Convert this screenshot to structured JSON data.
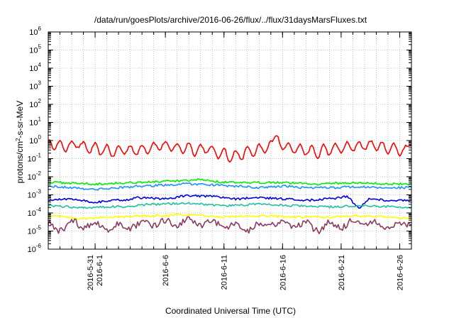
{
  "chart_data": {
    "type": "line",
    "title": "/data/run/goesPlots/archive/2016-06-26/flux/../flux/31daysMarsFluxes.txt",
    "xlabel": "Coordinated Universal Time (UTC)",
    "ylabel": "protons/cm2-s-sr-MeV",
    "y_scale": "log",
    "ylim": [
      1e-06,
      1000000.0
    ],
    "y_ticks": [
      {
        "base": "10",
        "exp": "6"
      },
      {
        "base": "10",
        "exp": "5"
      },
      {
        "base": "10",
        "exp": "4"
      },
      {
        "base": "10",
        "exp": "3"
      },
      {
        "base": "10",
        "exp": "2"
      },
      {
        "base": "10",
        "exp": "1"
      },
      {
        "base": "10",
        "exp": "0"
      },
      {
        "base": "10",
        "exp": "-1"
      },
      {
        "base": "10",
        "exp": "-2"
      },
      {
        "base": "10",
        "exp": "-3"
      },
      {
        "base": "10",
        "exp": "-4"
      },
      {
        "base": "10",
        "exp": "-5"
      },
      {
        "base": "10",
        "exp": "-6"
      }
    ],
    "x_range": [
      "2016-05-27T00:00",
      "2016-06-27T00:00"
    ],
    "x_ticks": [
      {
        "date": "2016-05-31",
        "lines": [
          "2016-5-31",
          "2016-6-1"
        ]
      },
      {
        "date": "2016-06-06",
        "lines": [
          "2016-6-6"
        ]
      },
      {
        "date": "2016-06-11",
        "lines": [
          "2016-6-11"
        ]
      },
      {
        "date": "2016-06-16",
        "lines": [
          "2016-6-16"
        ]
      },
      {
        "date": "2016-06-21",
        "lines": [
          "2016-6-21"
        ]
      },
      {
        "date": "2016-06-26",
        "lines": [
          "2016-6-26"
        ]
      }
    ],
    "grid": true,
    "series": [
      {
        "color": "#ff0000",
        "values": [
          {
            "x": "2016-05-27T00:00",
            "y": 1.2
          },
          {
            "x": "2016-05-27T12:00",
            "y": 0.35
          },
          {
            "x": "2016-05-28T00:00",
            "y": 0.9
          },
          {
            "x": "2016-05-28T12:00",
            "y": 0.25
          },
          {
            "x": "2016-05-29T00:00",
            "y": 1.0
          },
          {
            "x": "2016-05-29T12:00",
            "y": 0.4
          },
          {
            "x": "2016-05-30T00:00",
            "y": 0.8
          },
          {
            "x": "2016-05-30T12:00",
            "y": 0.2
          },
          {
            "x": "2016-05-31T00:00",
            "y": 0.7
          },
          {
            "x": "2016-05-31T12:00",
            "y": 0.15
          },
          {
            "x": "2016-06-01T00:00",
            "y": 0.6
          },
          {
            "x": "2016-06-01T12:00",
            "y": 0.12
          },
          {
            "x": "2016-06-02T00:00",
            "y": 0.5
          },
          {
            "x": "2016-06-02T12:00",
            "y": 0.18
          },
          {
            "x": "2016-06-03T00:00",
            "y": 0.55
          },
          {
            "x": "2016-06-03T12:00",
            "y": 0.15
          },
          {
            "x": "2016-06-04T00:00",
            "y": 0.6
          },
          {
            "x": "2016-06-04T12:00",
            "y": 0.2
          },
          {
            "x": "2016-06-05T00:00",
            "y": 0.8
          },
          {
            "x": "2016-06-05T12:00",
            "y": 0.3
          },
          {
            "x": "2016-06-06T00:00",
            "y": 0.9
          },
          {
            "x": "2016-06-06T12:00",
            "y": 0.25
          },
          {
            "x": "2016-06-07T00:00",
            "y": 0.7
          },
          {
            "x": "2016-06-07T12:00",
            "y": 0.2
          },
          {
            "x": "2016-06-08T00:00",
            "y": 0.8
          },
          {
            "x": "2016-06-08T12:00",
            "y": 0.15
          },
          {
            "x": "2016-06-09T00:00",
            "y": 0.6
          },
          {
            "x": "2016-06-09T12:00",
            "y": 0.2
          },
          {
            "x": "2016-06-10T00:00",
            "y": 0.5
          },
          {
            "x": "2016-06-10T12:00",
            "y": 0.1
          },
          {
            "x": "2016-06-11T00:00",
            "y": 0.4
          },
          {
            "x": "2016-06-11T12:00",
            "y": 0.06
          },
          {
            "x": "2016-06-12T00:00",
            "y": 0.3
          },
          {
            "x": "2016-06-12T12:00",
            "y": 0.08
          },
          {
            "x": "2016-06-13T00:00",
            "y": 0.5
          },
          {
            "x": "2016-06-13T12:00",
            "y": 0.12
          },
          {
            "x": "2016-06-14T00:00",
            "y": 0.6
          },
          {
            "x": "2016-06-14T12:00",
            "y": 0.2
          },
          {
            "x": "2016-06-15T00:00",
            "y": 0.9
          },
          {
            "x": "2016-06-15T12:00",
            "y": 2.0
          },
          {
            "x": "2016-06-16T00:00",
            "y": 0.3
          },
          {
            "x": "2016-06-16T12:00",
            "y": 0.8
          },
          {
            "x": "2016-06-17T00:00",
            "y": 0.2
          },
          {
            "x": "2016-06-17T12:00",
            "y": 0.6
          },
          {
            "x": "2016-06-18T00:00",
            "y": 0.15
          },
          {
            "x": "2016-06-18T12:00",
            "y": 0.5
          },
          {
            "x": "2016-06-19T00:00",
            "y": 0.1
          },
          {
            "x": "2016-06-19T12:00",
            "y": 0.6
          },
          {
            "x": "2016-06-20T00:00",
            "y": 0.15
          },
          {
            "x": "2016-06-20T12:00",
            "y": 0.7
          },
          {
            "x": "2016-06-21T00:00",
            "y": 0.2
          },
          {
            "x": "2016-06-21T12:00",
            "y": 0.8
          },
          {
            "x": "2016-06-22T00:00",
            "y": 0.25
          },
          {
            "x": "2016-06-22T12:00",
            "y": 0.9
          },
          {
            "x": "2016-06-23T00:00",
            "y": 0.3
          },
          {
            "x": "2016-06-23T12:00",
            "y": 1.0
          },
          {
            "x": "2016-06-24T00:00",
            "y": 0.3
          },
          {
            "x": "2016-06-24T12:00",
            "y": 0.8
          },
          {
            "x": "2016-06-25T00:00",
            "y": 0.2
          },
          {
            "x": "2016-06-25T12:00",
            "y": 0.7
          },
          {
            "x": "2016-06-26T00:00",
            "y": 0.15
          },
          {
            "x": "2016-06-26T12:00",
            "y": 0.5
          },
          {
            "x": "2016-06-27T00:00",
            "y": 0.6
          }
        ]
      },
      {
        "color": "#00ee00",
        "values": [
          {
            "x": "2016-05-27T00:00",
            "y": 0.005
          },
          {
            "x": "2016-05-29T00:00",
            "y": 0.0045
          },
          {
            "x": "2016-05-31T00:00",
            "y": 0.004
          },
          {
            "x": "2016-06-02T00:00",
            "y": 0.0045
          },
          {
            "x": "2016-06-04T00:00",
            "y": 0.005
          },
          {
            "x": "2016-06-06T00:00",
            "y": 0.0055
          },
          {
            "x": "2016-06-08T00:00",
            "y": 0.006
          },
          {
            "x": "2016-06-09T00:00",
            "y": 0.007
          },
          {
            "x": "2016-06-11T00:00",
            "y": 0.005
          },
          {
            "x": "2016-06-13T00:00",
            "y": 0.0045
          },
          {
            "x": "2016-06-15T00:00",
            "y": 0.005
          },
          {
            "x": "2016-06-17T00:00",
            "y": 0.0045
          },
          {
            "x": "2016-06-19T00:00",
            "y": 0.004
          },
          {
            "x": "2016-06-21T00:00",
            "y": 0.0045
          },
          {
            "x": "2016-06-23T00:00",
            "y": 0.0045
          },
          {
            "x": "2016-06-25T00:00",
            "y": 0.004
          },
          {
            "x": "2016-06-27T00:00",
            "y": 0.004
          }
        ]
      },
      {
        "color": "#1e90ff",
        "values": [
          {
            "x": "2016-05-27T00:00",
            "y": 0.003
          },
          {
            "x": "2016-05-29T00:00",
            "y": 0.0025
          },
          {
            "x": "2016-05-31T00:00",
            "y": 0.002
          },
          {
            "x": "2016-06-02T00:00",
            "y": 0.0025
          },
          {
            "x": "2016-06-04T00:00",
            "y": 0.003
          },
          {
            "x": "2016-06-06T00:00",
            "y": 0.0035
          },
          {
            "x": "2016-06-08T00:00",
            "y": 0.004
          },
          {
            "x": "2016-06-10T00:00",
            "y": 0.0035
          },
          {
            "x": "2016-06-12T00:00",
            "y": 0.003
          },
          {
            "x": "2016-06-14T00:00",
            "y": 0.0025
          },
          {
            "x": "2016-06-16T00:00",
            "y": 0.003
          },
          {
            "x": "2016-06-18T00:00",
            "y": 0.0025
          },
          {
            "x": "2016-06-20T00:00",
            "y": 0.0025
          },
          {
            "x": "2016-06-22T00:00",
            "y": 0.0028
          },
          {
            "x": "2016-06-24T00:00",
            "y": 0.0025
          },
          {
            "x": "2016-06-27T00:00",
            "y": 0.0025
          }
        ]
      },
      {
        "color": "#0000dd",
        "values": [
          {
            "x": "2016-05-27T00:00",
            "y": 0.0005
          },
          {
            "x": "2016-05-29T00:00",
            "y": 0.0006
          },
          {
            "x": "2016-05-31T00:00",
            "y": 0.0004
          },
          {
            "x": "2016-06-02T00:00",
            "y": 0.0005
          },
          {
            "x": "2016-06-04T00:00",
            "y": 0.0007
          },
          {
            "x": "2016-06-06T00:00",
            "y": 0.0006
          },
          {
            "x": "2016-06-08T00:00",
            "y": 0.0009
          },
          {
            "x": "2016-06-10T00:00",
            "y": 0.0008
          },
          {
            "x": "2016-06-12T00:00",
            "y": 0.0006
          },
          {
            "x": "2016-06-14T00:00",
            "y": 0.0007
          },
          {
            "x": "2016-06-16T00:00",
            "y": 0.0006
          },
          {
            "x": "2016-06-18T00:00",
            "y": 0.0005
          },
          {
            "x": "2016-06-20T00:00",
            "y": 0.0006
          },
          {
            "x": "2016-06-21T12:00",
            "y": 0.0008
          },
          {
            "x": "2016-06-22T12:00",
            "y": 0.0002
          },
          {
            "x": "2016-06-23T12:00",
            "y": 0.0006
          },
          {
            "x": "2016-06-25T00:00",
            "y": 0.0005
          },
          {
            "x": "2016-06-27T00:00",
            "y": 0.0005
          }
        ]
      },
      {
        "color": "#20c0a0",
        "values": [
          {
            "x": "2016-05-27T00:00",
            "y": 0.00025
          },
          {
            "x": "2016-05-30T00:00",
            "y": 0.0002
          },
          {
            "x": "2016-06-02T00:00",
            "y": 0.00022
          },
          {
            "x": "2016-06-05T00:00",
            "y": 0.0003
          },
          {
            "x": "2016-06-08T00:00",
            "y": 0.00035
          },
          {
            "x": "2016-06-11T00:00",
            "y": 0.00025
          },
          {
            "x": "2016-06-14T00:00",
            "y": 0.0003
          },
          {
            "x": "2016-06-17T00:00",
            "y": 0.00025
          },
          {
            "x": "2016-06-20T00:00",
            "y": 0.00022
          },
          {
            "x": "2016-06-23T00:00",
            "y": 0.00025
          },
          {
            "x": "2016-06-27T00:00",
            "y": 0.0002
          }
        ]
      },
      {
        "color": "#ffff00",
        "values": [
          {
            "x": "2016-05-27T00:00",
            "y": 7e-05
          },
          {
            "x": "2016-05-30T00:00",
            "y": 5e-05
          },
          {
            "x": "2016-06-02T00:00",
            "y": 6e-05
          },
          {
            "x": "2016-06-05T00:00",
            "y": 7e-05
          },
          {
            "x": "2016-06-08T00:00",
            "y": 8e-05
          },
          {
            "x": "2016-06-11T00:00",
            "y": 6e-05
          },
          {
            "x": "2016-06-14T00:00",
            "y": 7e-05
          },
          {
            "x": "2016-06-17T00:00",
            "y": 6e-05
          },
          {
            "x": "2016-06-20T00:00",
            "y": 6e-05
          },
          {
            "x": "2016-06-23T00:00",
            "y": 7e-05
          },
          {
            "x": "2016-06-27T00:00",
            "y": 5e-05
          }
        ]
      },
      {
        "color": "#8b3a62",
        "values": [
          {
            "x": "2016-05-27T00:00",
            "y": 3e-05
          },
          {
            "x": "2016-05-28T00:00",
            "y": 1e-05
          },
          {
            "x": "2016-05-29T00:00",
            "y": 4e-05
          },
          {
            "x": "2016-05-30T00:00",
            "y": 1.5e-05
          },
          {
            "x": "2016-05-31T00:00",
            "y": 3e-05
          },
          {
            "x": "2016-06-01T00:00",
            "y": 1e-05
          },
          {
            "x": "2016-06-02T00:00",
            "y": 2.5e-05
          },
          {
            "x": "2016-06-03T00:00",
            "y": 1.5e-05
          },
          {
            "x": "2016-06-04T00:00",
            "y": 3e-05
          },
          {
            "x": "2016-06-05T00:00",
            "y": 2e-05
          },
          {
            "x": "2016-06-06T00:00",
            "y": 4e-05
          },
          {
            "x": "2016-06-07T00:00",
            "y": 2e-05
          },
          {
            "x": "2016-06-08T00:00",
            "y": 5e-05
          },
          {
            "x": "2016-06-09T00:00",
            "y": 2e-05
          },
          {
            "x": "2016-06-10T00:00",
            "y": 4e-05
          },
          {
            "x": "2016-06-11T00:00",
            "y": 1.5e-05
          },
          {
            "x": "2016-06-12T00:00",
            "y": 3e-05
          },
          {
            "x": "2016-06-13T00:00",
            "y": 1e-05
          },
          {
            "x": "2016-06-14T00:00",
            "y": 3e-05
          },
          {
            "x": "2016-06-15T00:00",
            "y": 2e-05
          },
          {
            "x": "2016-06-16T00:00",
            "y": 4e-05
          },
          {
            "x": "2016-06-17T00:00",
            "y": 1.5e-05
          },
          {
            "x": "2016-06-18T00:00",
            "y": 3e-05
          },
          {
            "x": "2016-06-19T00:00",
            "y": 1e-05
          },
          {
            "x": "2016-06-20T00:00",
            "y": 3e-05
          },
          {
            "x": "2016-06-21T00:00",
            "y": 1.5e-05
          },
          {
            "x": "2016-06-22T00:00",
            "y": 4e-05
          },
          {
            "x": "2016-06-23T00:00",
            "y": 2e-05
          },
          {
            "x": "2016-06-24T00:00",
            "y": 3e-05
          },
          {
            "x": "2016-06-25T00:00",
            "y": 1.5e-05
          },
          {
            "x": "2016-06-26T00:00",
            "y": 3e-05
          },
          {
            "x": "2016-06-27T00:00",
            "y": 2e-05
          }
        ]
      }
    ]
  }
}
